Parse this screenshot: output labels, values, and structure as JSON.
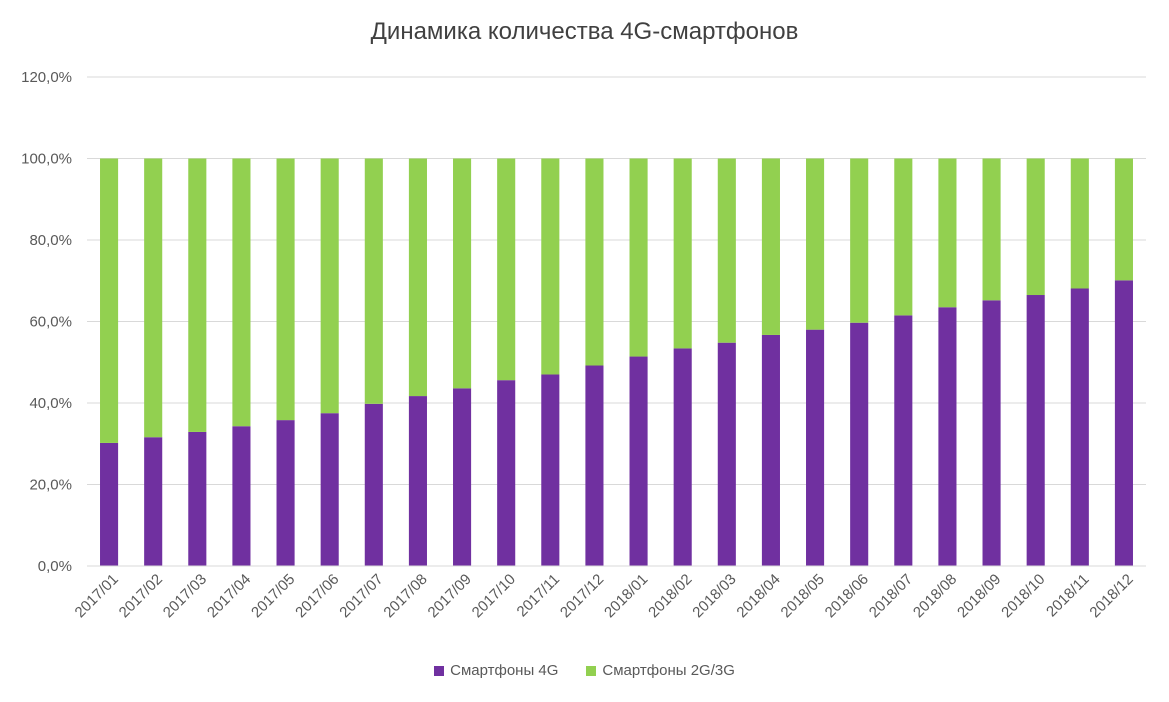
{
  "chart_data": {
    "type": "bar",
    "stacked": true,
    "title": "Динамика количества 4G-смартфонов",
    "categories": [
      "2017/01",
      "2017/02",
      "2017/03",
      "2017/04",
      "2017/05",
      "2017/06",
      "2017/07",
      "2017/08",
      "2017/09",
      "2017/10",
      "2017/11",
      "2017/12",
      "2018/01",
      "2018/02",
      "2018/03",
      "2018/04",
      "2018/05",
      "2018/06",
      "2018/07",
      "2018/08",
      "2018/09",
      "2018/10",
      "2018/11",
      "2018/12"
    ],
    "series": [
      {
        "name": "Смартфоны 4G",
        "color": "#7030a0",
        "values": [
          30.2,
          31.6,
          32.9,
          34.3,
          35.8,
          37.5,
          39.8,
          41.7,
          43.6,
          45.6,
          47.0,
          49.2,
          51.4,
          53.4,
          54.8,
          56.7,
          58.0,
          59.7,
          61.5,
          63.5,
          65.2,
          66.5,
          68.1,
          70.1
        ]
      },
      {
        "name": "Смартфоны 2G/3G",
        "color": "#92d050",
        "values": [
          69.8,
          68.4,
          67.1,
          65.7,
          64.2,
          62.5,
          60.2,
          58.3,
          56.4,
          54.4,
          53.0,
          50.8,
          48.6,
          46.6,
          45.2,
          43.3,
          42.0,
          40.3,
          38.5,
          36.5,
          34.8,
          33.5,
          31.9,
          29.9
        ]
      }
    ],
    "yticks": [
      "0,0%",
      "20,0%",
      "40,0%",
      "60,0%",
      "80,0%",
      "100,0%",
      "120,0%"
    ],
    "ylim": [
      0,
      120
    ],
    "grid": true,
    "legend_position": "bottom",
    "gridline_color": "#d9d9d9",
    "axis_text_color": "#595959"
  }
}
